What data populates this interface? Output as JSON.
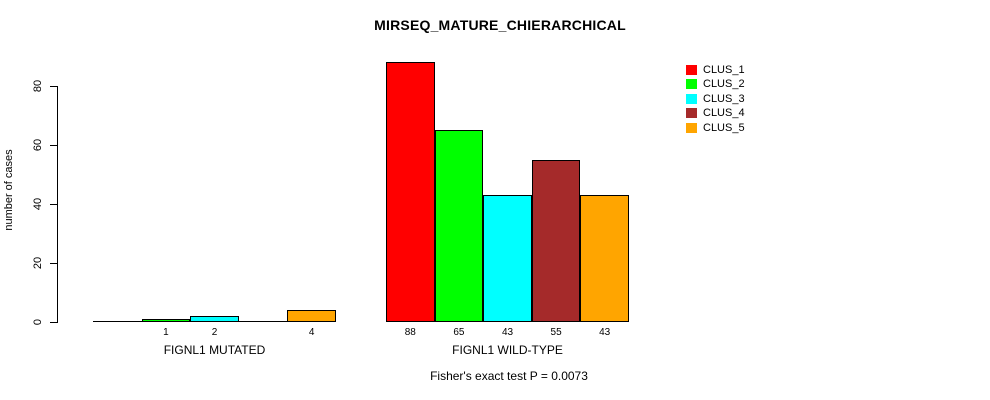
{
  "chart_data": {
    "type": "bar",
    "title": "MIRSEQ_MATURE_CHIERARCHICAL",
    "ylabel": "number of cases",
    "footnote": "Fisher's exact test P = 0.0073",
    "y_ticks": [
      0,
      20,
      40,
      60,
      80
    ],
    "ylim": [
      0,
      88
    ],
    "grid": false,
    "legend_position": "top-right",
    "series": [
      {
        "name": "CLUS_1",
        "color": "#FF0000"
      },
      {
        "name": "CLUS_2",
        "color": "#00FF00"
      },
      {
        "name": "CLUS_3",
        "color": "#00FFFF"
      },
      {
        "name": "CLUS_4",
        "color": "#A52A2A"
      },
      {
        "name": "CLUS_5",
        "color": "#FFA500"
      }
    ],
    "groups": [
      {
        "label": "FIGNL1 MUTATED",
        "values": [
          0,
          1,
          2,
          0,
          4
        ],
        "bar_labels": [
          "",
          "1",
          "2",
          "",
          "4"
        ]
      },
      {
        "label": "FIGNL1 WILD-TYPE",
        "values": [
          88,
          65,
          43,
          55,
          43
        ],
        "bar_labels": [
          "88",
          "65",
          "43",
          "55",
          "43"
        ]
      }
    ],
    "axis_color": "#000000",
    "background_color": "#FFFFFF"
  }
}
